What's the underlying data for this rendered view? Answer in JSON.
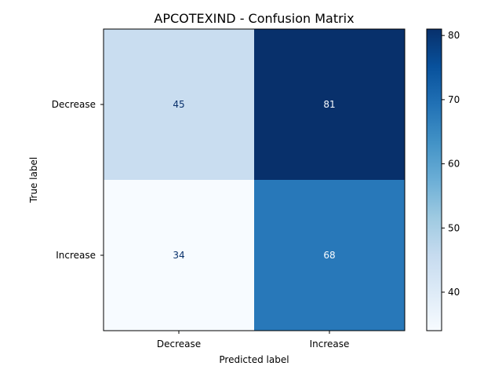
{
  "chart_data": {
    "type": "heatmap",
    "title": "APCOTEXIND - Confusion Matrix",
    "xlabel": "Predicted label",
    "ylabel": "True label",
    "x_categories": [
      "Decrease",
      "Increase"
    ],
    "y_categories": [
      "Decrease",
      "Increase"
    ],
    "values": [
      [
        45,
        81
      ],
      [
        34,
        68
      ]
    ],
    "colormap": "Blues",
    "color_range": [
      34,
      81
    ],
    "colorbar_ticks": [
      40,
      50,
      60,
      70,
      80
    ],
    "colors": {
      "low": "#f7fbff",
      "high": "#08306b",
      "text_dark": "#08306b",
      "text_light": "#f7fbff"
    }
  }
}
